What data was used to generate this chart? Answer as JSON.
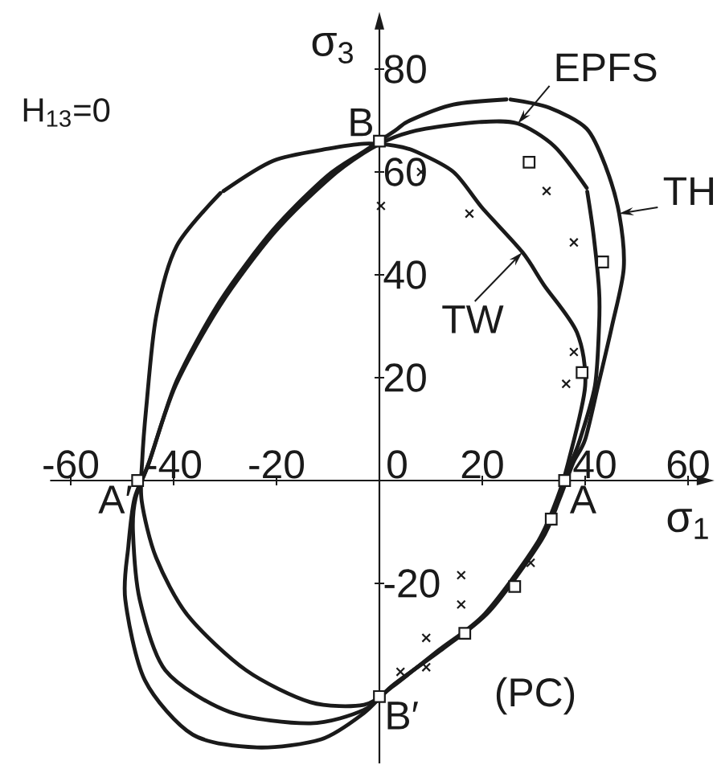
{
  "chart_data": {
    "type": "line",
    "xlabel": "σ$_{1}$",
    "ylabel": "σ$_{3}$",
    "xlim": [
      -64,
      62
    ],
    "ylim": [
      -55,
      88
    ],
    "xticks": [
      -60,
      -40,
      -20,
      0,
      20,
      40,
      60
    ],
    "yticks": [
      -20,
      20,
      40,
      60,
      80
    ],
    "series": [
      {
        "color": "#1a1a1a",
        "x": [
          24.7,
          14.4,
          5.9,
          3,
          -3,
          -10.3,
          -20.6,
          -30.9,
          -39.4,
          -44.7,
          -47.6,
          -48.8,
          -49.4,
          -45.6,
          -36.3,
          -23.8,
          -11.3,
          -3,
          2.5,
          12.5,
          21.5,
          31.5,
          35,
          37.7,
          40,
          42.5,
          45.2,
          47.5,
          46.6,
          44,
          40.3,
          33,
          25.5
        ],
        "values": [
          74.1,
          73.1,
          70,
          68,
          64,
          59.1,
          48.8,
          35,
          19.4,
          3.7,
          -3.5,
          -12.8,
          -23.1,
          -38.8,
          -49.4,
          -51.9,
          -50.3,
          -45.2,
          -39.9,
          -32.6,
          -25.3,
          -11.6,
          -3.6,
          3.5,
          8,
          18.4,
          30,
          41.3,
          51.9,
          61,
          68.4,
          72.5,
          74.1
        ]
      },
      {
        "color": "#1a1a1a",
        "x": [
          40.3,
          34,
          26.9,
          19.4,
          9,
          3,
          -3,
          -10,
          -20.6,
          -31,
          -39.6,
          -44.8,
          -47.4,
          -47.9,
          -46.6,
          -41.6,
          -29.1,
          -13.4,
          -3,
          2.5,
          12,
          21,
          31,
          34.7,
          37.3,
          39,
          41.9,
          42.7,
          42.7,
          41.6,
          40.4
        ],
        "values": [
          56.9,
          65,
          69.4,
          69.7,
          68.4,
          66.8,
          63.7,
          58.5,
          48,
          34,
          18.5,
          3.5,
          -3.5,
          -10,
          -23.1,
          -36.9,
          -45,
          -47.2,
          -44.6,
          -40,
          -32.8,
          -25.6,
          -12,
          -3.6,
          3.5,
          8,
          18.4,
          30,
          37,
          48,
          56.2
        ]
      },
      {
        "color": "#1a1a1a",
        "x": [
          -30.9,
          -39.4,
          -43.4,
          -45.3,
          -46.1,
          -46.2,
          -43.4,
          -37.2,
          -25.9,
          -13.4,
          -3,
          2.5,
          11.5,
          20.5,
          30.5,
          34.5,
          36.7,
          40,
          38.4,
          32,
          27.8,
          20,
          14.4,
          7,
          3,
          -3,
          -10,
          -20.6,
          -30.3
        ],
        "values": [
          55.9,
          45.6,
          31.9,
          14.4,
          4,
          -4,
          -15,
          -26.3,
          -36.9,
          -43.1,
          -43.6,
          -40.1,
          -33,
          -25.9,
          -12.4,
          -3.6,
          3.5,
          18.4,
          28.8,
          38,
          44.4,
          53,
          60,
          64,
          65.1,
          65.5,
          64.5,
          62.2,
          56.3
        ]
      },
      {
        "type": "scatter",
        "marker": "cross",
        "color": "#1a1a1a",
        "x": [
          0.3,
          8.1,
          17.5,
          32.5,
          37.8,
          37.8,
          36.3,
          15.9,
          15.9,
          9.1,
          4.1,
          9.1,
          29.4
        ],
        "values": [
          53.4,
          60,
          51.9,
          56.3,
          46.3,
          25,
          18.8,
          -18.4,
          -24.1,
          -30.6,
          -37.2,
          -36.3,
          -16
        ]
      },
      {
        "type": "scatter",
        "marker": "square",
        "color": "#1a1a1a",
        "x": [
          0,
          29.1,
          43.4,
          39.4,
          36,
          33.4,
          26.3,
          16.6,
          0,
          -47
        ],
        "values": [
          66,
          61.9,
          42.5,
          21,
          0,
          -7.5,
          -20.6,
          -29.7,
          -42,
          0
        ]
      }
    ],
    "annotations": [
      "H$_{13}$=0",
      "(PC)",
      {
        "text": "A",
        "x": 36,
        "y": 0
      },
      {
        "text": "B",
        "x": 0,
        "y": 66
      },
      {
        "text": "A′",
        "x": -47,
        "y": 0
      },
      {
        "text": "B′",
        "x": 0,
        "y": -42
      },
      {
        "text": "EPFS",
        "x": 26.9,
        "y": 69.4
      },
      {
        "text": "TH",
        "x": 46.6,
        "y": 51.9
      },
      {
        "text": "TW",
        "x": 27.8,
        "y": 44.4
      }
    ]
  }
}
